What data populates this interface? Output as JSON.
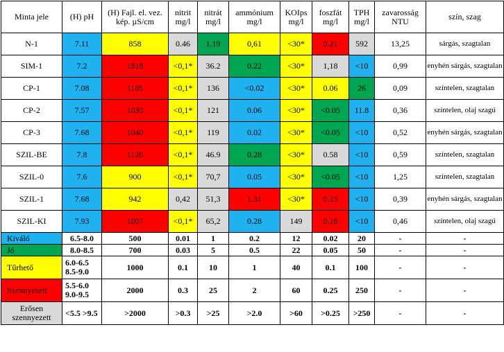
{
  "header": [
    "Minta jele",
    "(H) pH",
    "(H) Fajl. el. vez. kép. µS/cm",
    "nitrit mg/l",
    "nitrát mg/l",
    "ammónium mg/l",
    "KOIps mg/l",
    "foszfát mg/l",
    "TPH mg/l",
    "zavarosság NTU",
    "szín, szag"
  ],
  "rows": [
    {
      "id": "N-1",
      "ph": "7.11",
      "vez": "858",
      "nitrit": "0.46",
      "nitrat": "1.19",
      "ammonium": "0,61",
      "koi": "<30*",
      "foszfat": "0.21",
      "tph": "592",
      "zav": "13,25",
      "szin": "sárgás, szagtalan"
    },
    {
      "id": "SIM-1",
      "ph": "7.2",
      "vez": "1818",
      "nitrit": "<0,1*",
      "nitrat": "36.2",
      "ammonium": "0.22",
      "koi": "<30*",
      "foszfat": "1,18",
      "tph": "<10",
      "zav": "0,99",
      "szin": "enyhén sárgás, szagtalan"
    },
    {
      "id": "CP-1",
      "ph": "7.08",
      "vez": "1185",
      "nitrit": "<0,1*",
      "nitrat": "136",
      "ammonium": "<0.02",
      "koi": "<30*",
      "foszfat": "0.06",
      "tph": "26",
      "zav": "0,09",
      "szin": "színtelen, szagtalan"
    },
    {
      "id": "CP-2",
      "ph": "7.57",
      "vez": "1030",
      "nitrit": "<0,1*",
      "nitrat": "121",
      "ammonium": "0.06",
      "koi": "<30*",
      "foszfat": "<0.05",
      "tph": "11.8",
      "zav": "0,36",
      "szin": "színtelen, olaj szagú"
    },
    {
      "id": "CP-3",
      "ph": "7.68",
      "vez": "1040",
      "nitrit": "<0,1*",
      "nitrat": "119",
      "ammonium": "0.02",
      "koi": "<30*",
      "foszfat": "<0.05",
      "tph": "<10",
      "zav": "0,52",
      "szin": "enyhén sárgás, szagtalan"
    },
    {
      "id": "SZIL-BE",
      "ph": "7.8",
      "vez": "1120",
      "nitrit": "<0,1*",
      "nitrat": "46.9",
      "ammonium": "0.28",
      "koi": "<30*",
      "foszfat": "0.58",
      "tph": "<10",
      "zav": "0,59",
      "szin": "színtelen, szagtalan"
    },
    {
      "id": "SZIL-0",
      "ph": "7.6",
      "vez": "900",
      "nitrit": "<0,1*",
      "nitrat": "70,7",
      "ammonium": "0.05",
      "koi": "<30*",
      "foszfat": "<0.05",
      "tph": "<10",
      "zav": "1,25",
      "szin": "színtelen, szagtalan"
    },
    {
      "id": "SZIL-1",
      "ph": "7.68",
      "vez": "942",
      "nitrit": "0,42",
      "nitrat": "51,3",
      "ammonium": "1.31",
      "koi": "<30*",
      "foszfat": "0.13",
      "tph": "<10",
      "zav": "0,39",
      "szin": "enyhén sárgás, szagtalan"
    },
    {
      "id": "SZIL-KI",
      "ph": "7.93",
      "vez": "1007",
      "nitrit": "<0,1*",
      "nitrat": "65,2",
      "ammonium": "0.28",
      "koi": "149",
      "foszfat": "0.18",
      "tph": "<10",
      "zav": "0,46",
      "szin": "színtelen, olaj szagú"
    }
  ],
  "legend": [
    {
      "label": "Kiváló",
      "ph": "6.5-8.0",
      "vez": "500",
      "nitrit": "0.01",
      "nitrat": "1",
      "ammonium": "0.2",
      "koi": "12",
      "foszfat": "0.02",
      "tph": "20",
      "zav": "-",
      "szin": "-"
    },
    {
      "label": "Jó",
      "ph": "8.0-8.5",
      "vez": "700",
      "nitrit": "0.03",
      "nitrat": "5",
      "ammonium": "0.5",
      "koi": "22",
      "foszfat": "0.05",
      "tph": "50",
      "zav": "-",
      "szin": "-"
    },
    {
      "label": "Tűrhető",
      "ph": "6.0-6.5 8.5-9.0",
      "vez": "1000",
      "nitrit": "0.1",
      "nitrat": "10",
      "ammonium": "1",
      "koi": "40",
      "foszfat": "0.1",
      "tph": "100",
      "zav": "-",
      "szin": "-"
    },
    {
      "label": "Szennyezett",
      "ph": "5.5-6.0 9.0-9.5",
      "vez": "2000",
      "nitrit": "0.3",
      "nitrat": "25",
      "ammonium": "2",
      "koi": "60",
      "foszfat": "0.25",
      "tph": "250",
      "zav": "-",
      "szin": "-"
    },
    {
      "label": "Erősen szennyezett",
      "ph": "<5.5 >9.5",
      "vez": ">2000",
      "nitrit": ">0.3",
      "nitrat": ">25",
      "ammonium": ">2.0",
      "koi": ">60",
      "foszfat": ">0.25",
      "tph": ">250",
      "zav": "-",
      "szin": "-"
    }
  ],
  "colors": {
    "blue": "#1fb1f0",
    "green": "#00a651",
    "yellow": "#ffff00",
    "red": "#ff0000",
    "gray": "#d9d9d9"
  }
}
